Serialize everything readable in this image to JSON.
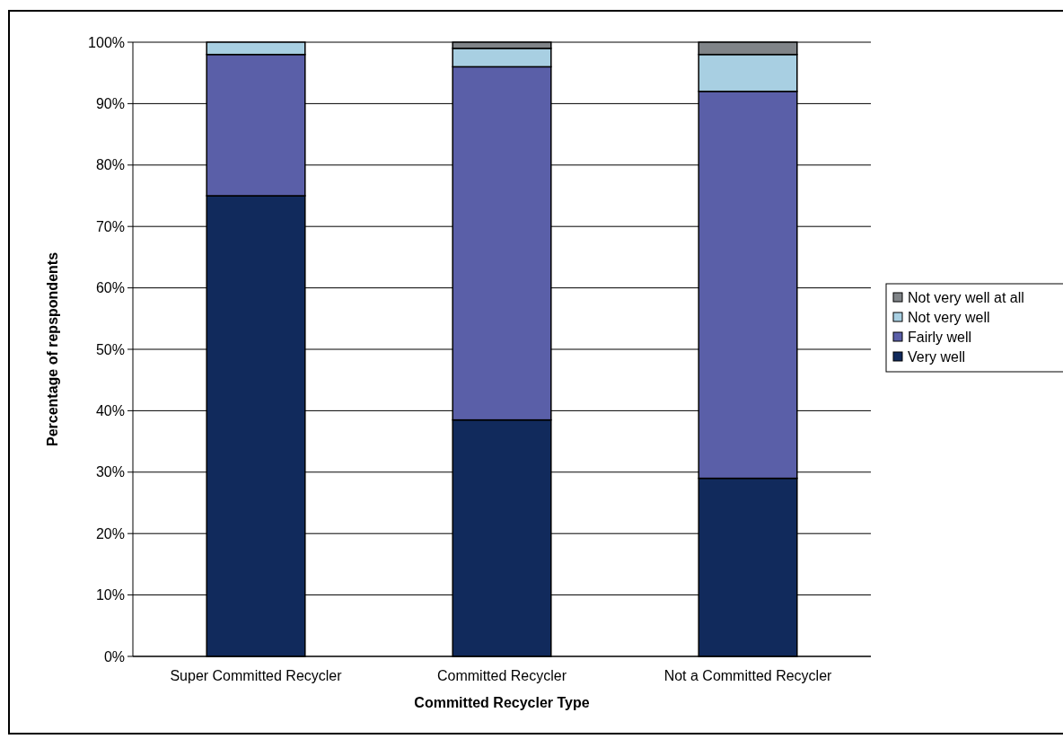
{
  "chart_data": {
    "type": "bar",
    "stacked": true,
    "xlabel": "Committed Recycler Type",
    "ylabel": "Percentage of repspondents",
    "categories": [
      "Super Committed Recycler",
      "Committed Recycler",
      "Not a Committed Recycler"
    ],
    "series": [
      {
        "name": "Very well",
        "color": "#112a5c",
        "values": [
          75,
          38.5,
          29
        ]
      },
      {
        "name": "Fairly well",
        "color": "#5a5fa8",
        "values": [
          23,
          57.5,
          63
        ]
      },
      {
        "name": "Not very well",
        "color": "#a8cfe2",
        "values": [
          2,
          3,
          6
        ]
      },
      {
        "name": "Not very well at all",
        "color": "#808488",
        "values": [
          0,
          1,
          2
        ]
      }
    ],
    "ylim": [
      0,
      100
    ],
    "yticks": [
      {
        "value": 0,
        "label": "0%"
      },
      {
        "value": 10,
        "label": "10%"
      },
      {
        "value": 20,
        "label": "20%"
      },
      {
        "value": 30,
        "label": "30%"
      },
      {
        "value": 40,
        "label": "40%"
      },
      {
        "value": 50,
        "label": "50%"
      },
      {
        "value": 60,
        "label": "60%"
      },
      {
        "value": 70,
        "label": "70%"
      },
      {
        "value": 80,
        "label": "80%"
      },
      {
        "value": 90,
        "label": "90%"
      },
      {
        "value": 100,
        "label": "100%"
      }
    ],
    "grid": "y",
    "legend": "right"
  }
}
